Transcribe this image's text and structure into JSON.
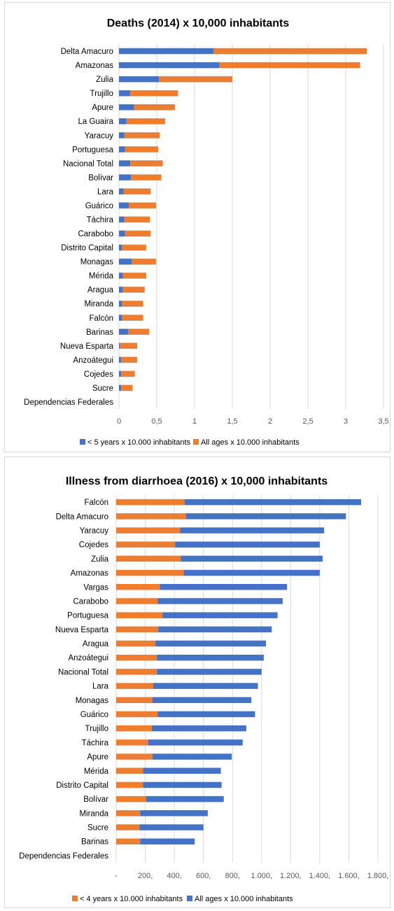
{
  "chart_data": [
    {
      "type": "bar",
      "orientation": "horizontal",
      "stacked": true,
      "title": "Deaths (2014) x 10,000 inhabitants",
      "xlim": [
        0,
        3.5
      ],
      "xticks": [
        "0",
        "0,5",
        "1",
        "1,5",
        "2",
        "2,5",
        "3",
        "3,5"
      ],
      "grid": true,
      "legend_position": "bottom",
      "categories": [
        "Delta Amacuro",
        "Amazonas",
        "Zulia",
        "Trujillo",
        "Apure",
        "La Guaira",
        "Yaracuy",
        "Portuguesa",
        "Nacional Total",
        "Bolívar",
        "Lara",
        "Guárico",
        "Táchira",
        "Carabobo",
        "Distrito Capital",
        "Monagas",
        "Mérida",
        "Aragua",
        "Miranda",
        "Falcón",
        "Barinas",
        "Nueva Esparta",
        "Anzoátegui",
        "Cojedes",
        "Sucre",
        "Dependencias Federales"
      ],
      "series": [
        {
          "name": "< 5 years x 10.000 inhabitants",
          "color": "#4472C4",
          "values": [
            1.25,
            1.33,
            0.53,
            0.15,
            0.2,
            0.1,
            0.07,
            0.08,
            0.15,
            0.16,
            0.06,
            0.13,
            0.07,
            0.08,
            0.04,
            0.17,
            0.05,
            0.05,
            0.04,
            0.04,
            0.12,
            0.01,
            0.03,
            0.03,
            0.03,
            0
          ]
        },
        {
          "name": "All ages x 10.000 inhabitants",
          "color": "#ED7D31",
          "values": [
            2.03,
            1.86,
            0.97,
            0.63,
            0.54,
            0.51,
            0.47,
            0.44,
            0.43,
            0.4,
            0.36,
            0.36,
            0.34,
            0.34,
            0.32,
            0.32,
            0.31,
            0.29,
            0.28,
            0.28,
            0.28,
            0.23,
            0.21,
            0.18,
            0.15,
            0
          ]
        }
      ]
    },
    {
      "type": "bar",
      "orientation": "horizontal",
      "stacked": true,
      "title": "Illness from diarrhoea (2016) x 10,000 inhabitants",
      "xlim": [
        0,
        1800
      ],
      "xticks": [
        "-",
        "200,",
        "400,",
        "600,",
        "800,",
        "1.000,",
        "1.200,",
        "1.400,",
        "1.600,",
        "1.800,"
      ],
      "grid": true,
      "legend_position": "bottom",
      "categories": [
        "Falcón",
        "Delta Amacuro",
        "Yaracuy",
        "Cojedes",
        "Zulia",
        "Amazonas",
        "Vargas",
        "Carabobo",
        "Portuguesa",
        "Nueva Esparta",
        "Aragua",
        "Anzoátegui",
        "Nacional Total",
        "Lara",
        "Monagas",
        "Guárico",
        "Trujillo",
        "Táchira",
        "Apure",
        "Mérida",
        "Distrito Capital",
        "Bolívar",
        "Miranda",
        "Sucre",
        "Barinas",
        "Dependencias Federales"
      ],
      "series": [
        {
          "name": "< 4 years x 10.000 inhabitants",
          "color": "#ED7D31",
          "values": [
            470,
            480,
            440,
            405,
            445,
            465,
            300,
            285,
            320,
            290,
            270,
            280,
            280,
            255,
            250,
            285,
            245,
            220,
            250,
            185,
            185,
            205,
            165,
            160,
            165,
            0
          ]
        },
        {
          "name": "All ages x 10.000 inhabitants",
          "color": "#4472C4",
          "values": [
            1215,
            1100,
            990,
            995,
            975,
            935,
            875,
            860,
            790,
            780,
            760,
            735,
            720,
            720,
            680,
            670,
            650,
            650,
            545,
            535,
            540,
            535,
            465,
            440,
            375,
            0
          ]
        }
      ]
    }
  ]
}
